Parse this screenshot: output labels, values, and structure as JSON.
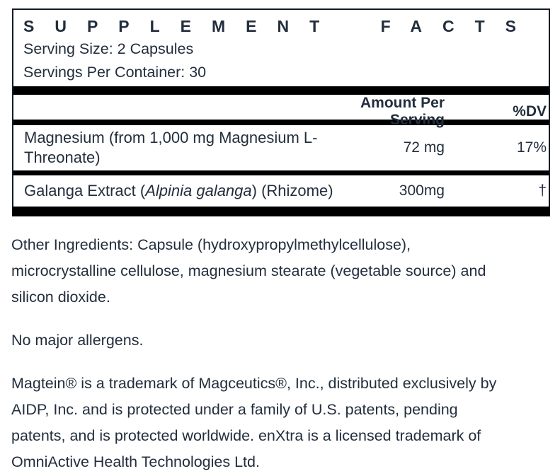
{
  "supplement_facts": {
    "title": "SUPPLEMENT FACTS",
    "serving_size": "Serving Size: 2 Capsules",
    "servings_per_container": "Servings Per Container: 30",
    "columns": {
      "amount": "Amount Per Serving",
      "dv": "%DV"
    },
    "rows": [
      {
        "name_lines": [
          "Magnesium (from 1,000 mg Magnesium L-",
          "Threonate)"
        ],
        "amount": "72 mg",
        "dv": "17%"
      },
      {
        "name_prefix": "Galanga Extract (",
        "name_italic": "Alpinia galanga",
        "name_suffix": ") (Rhizome)",
        "amount": "300mg",
        "dv": "†"
      }
    ]
  },
  "paragraphs": {
    "other_ingredients_lines": [
      "Other Ingredients: Capsule (hydroxypropylmethylcellulose),",
      "microcrystalline cellulose, magnesium stearate (vegetable source) and",
      "silicon dioxide."
    ],
    "allergens": "No major allergens.",
    "trademark_lines": [
      "Magtein® is a trademark of Magceutics®, Inc., distributed exclusively by",
      "AIDP, Inc. and is protected under a family of U.S. patents, pending",
      "patents, and is protected worldwide. enXtra is a licensed trademark of",
      "OmniActive Health Technologies Ltd."
    ]
  },
  "colors": {
    "text": "#232e3d",
    "bar": "#000000",
    "border": "#131c28",
    "background": "#ffffff"
  }
}
